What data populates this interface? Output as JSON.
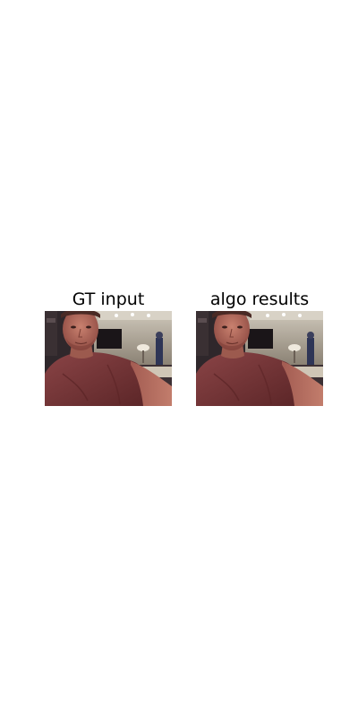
{
  "panels": [
    {
      "title": "GT input"
    },
    {
      "title": "algo results"
    }
  ],
  "photo": {
    "subject_shirt_color": "#7a3a3c",
    "skin_color": "#b36a5c",
    "background_dark": "#2a2226",
    "wall_color": "#a8a090"
  }
}
